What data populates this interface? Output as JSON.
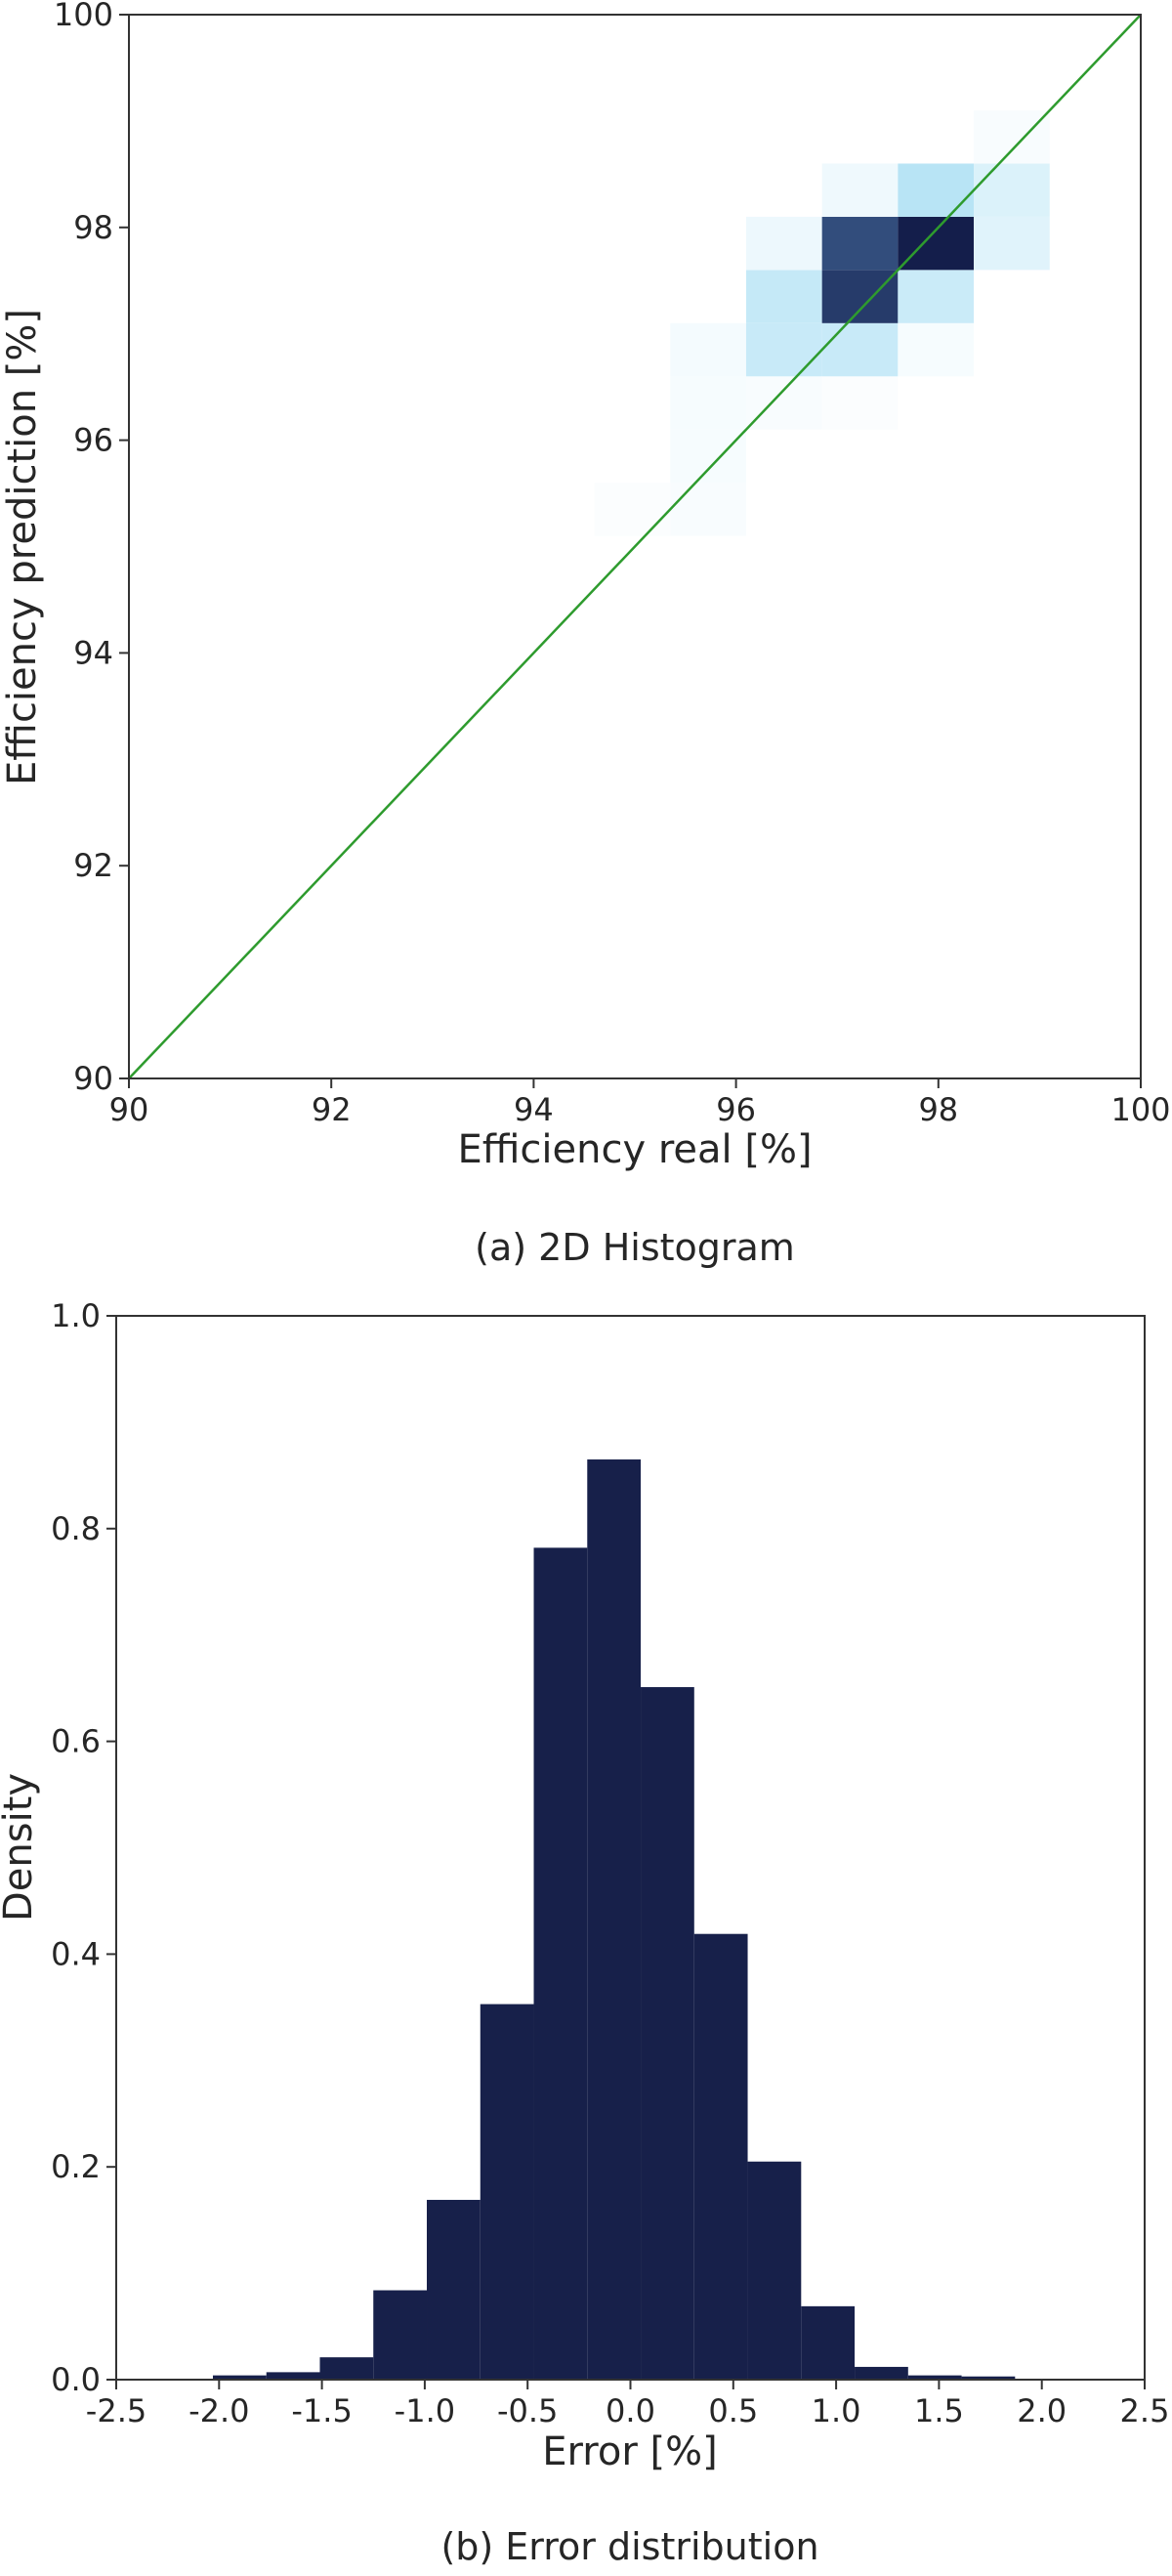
{
  "chart_data": [
    {
      "type": "heatmap",
      "caption": "(a) 2D Histogram",
      "xlabel": "Efficiency real [%]",
      "ylabel": "Efficiency prediction [%]",
      "xlim": [
        90,
        100
      ],
      "ylim": [
        90,
        100
      ],
      "xticks": [
        "90",
        "92",
        "94",
        "96",
        "98",
        "100"
      ],
      "yticks": [
        "90",
        "92",
        "94",
        "96",
        "98",
        "100"
      ],
      "bin_width": 0.75,
      "bin_height": 0.5,
      "colormap": [
        "#ffffff",
        "#b5e3f5",
        "#2f4a7a",
        "#141e4b"
      ],
      "reference_line": {
        "x": [
          90,
          100
        ],
        "y": [
          90,
          100
        ],
        "color": "#2e9b2e"
      },
      "cells": [
        {
          "x": 94.6,
          "y": 95.1,
          "v": 0.02
        },
        {
          "x": 95.35,
          "y": 95.1,
          "v": 0.03
        },
        {
          "x": 95.35,
          "y": 95.6,
          "v": 0.04
        },
        {
          "x": 95.35,
          "y": 96.1,
          "v": 0.04
        },
        {
          "x": 95.35,
          "y": 96.6,
          "v": 0.05
        },
        {
          "x": 96.1,
          "y": 96.1,
          "v": 0.03
        },
        {
          "x": 96.1,
          "y": 96.6,
          "v": 0.25
        },
        {
          "x": 96.1,
          "y": 97.1,
          "v": 0.26
        },
        {
          "x": 96.1,
          "y": 97.6,
          "v": 0.08
        },
        {
          "x": 96.85,
          "y": 96.1,
          "v": 0.02
        },
        {
          "x": 96.85,
          "y": 96.6,
          "v": 0.25
        },
        {
          "x": 96.85,
          "y": 97.1,
          "v": 0.78
        },
        {
          "x": 96.85,
          "y": 97.6,
          "v": 0.66
        },
        {
          "x": 96.85,
          "y": 98.1,
          "v": 0.07
        },
        {
          "x": 97.6,
          "y": 96.6,
          "v": 0.04
        },
        {
          "x": 97.6,
          "y": 97.1,
          "v": 0.24
        },
        {
          "x": 97.6,
          "y": 97.6,
          "v": 1.0
        },
        {
          "x": 97.6,
          "y": 98.1,
          "v": 0.32
        },
        {
          "x": 98.35,
          "y": 97.6,
          "v": 0.14
        },
        {
          "x": 98.35,
          "y": 98.1,
          "v": 0.16
        },
        {
          "x": 98.35,
          "y": 98.6,
          "v": 0.03
        }
      ]
    },
    {
      "type": "bar",
      "caption": "(b) Error distribution",
      "xlabel": "Error [%]",
      "ylabel": "Density",
      "xlim": [
        -2.5,
        2.5
      ],
      "ylim": [
        0.0,
        1.0
      ],
      "xticks": [
        "-2.5",
        "-2.0",
        "-1.5",
        "-1.0",
        "-0.5",
        "0.0",
        "0.5",
        "1.0",
        "1.5",
        "2.0",
        "2.5"
      ],
      "yticks": [
        "0.0",
        "0.2",
        "0.4",
        "0.6",
        "0.8",
        "1.0"
      ],
      "bar_color": "#17204a",
      "bins": [
        {
          "x0": -2.03,
          "x1": -1.77,
          "y": 0.004
        },
        {
          "x0": -1.77,
          "y": 0.007,
          "x1": -1.51
        },
        {
          "x0": -1.51,
          "x1": -1.25,
          "y": 0.021
        },
        {
          "x0": -1.25,
          "x1": -0.99,
          "y": 0.084
        },
        {
          "x0": -0.99,
          "x1": -0.73,
          "y": 0.169
        },
        {
          "x0": -0.73,
          "x1": -0.47,
          "y": 0.353
        },
        {
          "x0": -0.47,
          "x1": -0.21,
          "y": 0.782
        },
        {
          "x0": -0.21,
          "x1": 0.05,
          "y": 0.865
        },
        {
          "x0": 0.05,
          "x1": 0.31,
          "y": 0.651
        },
        {
          "x0": 0.31,
          "x1": 0.57,
          "y": 0.419
        },
        {
          "x0": 0.57,
          "x1": 0.83,
          "y": 0.205
        },
        {
          "x0": 0.83,
          "x1": 1.09,
          "y": 0.069
        },
        {
          "x0": 1.09,
          "x1": 1.35,
          "y": 0.012
        },
        {
          "x0": 1.35,
          "x1": 1.61,
          "y": 0.004
        },
        {
          "x0": 1.61,
          "x1": 1.87,
          "y": 0.003
        }
      ]
    }
  ]
}
